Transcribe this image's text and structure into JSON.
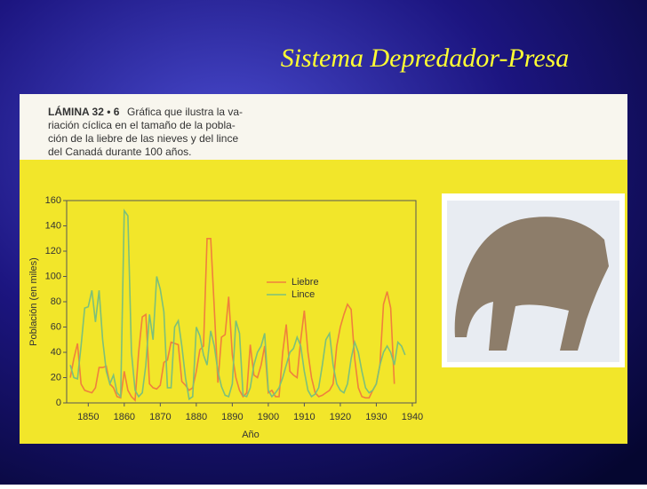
{
  "slide": {
    "title": "Sistema Depredador-Presa",
    "caption_label": "LÁMINA 32 • 6",
    "caption_lines": [
      "Gráfica que ilustra la va-",
      "riación cíclica en el tamaño de la pobla-",
      "ción de la liebre de las nieves y del lince",
      "del Canadá durante 100 años."
    ]
  },
  "chart_data": {
    "type": "line",
    "x_label": "Año",
    "y_label": "Población (en miles)",
    "x": [
      1845,
      1846,
      1847,
      1848,
      1849,
      1850,
      1851,
      1852,
      1853,
      1854,
      1855,
      1856,
      1857,
      1858,
      1859,
      1860,
      1861,
      1862,
      1863,
      1864,
      1865,
      1866,
      1867,
      1868,
      1869,
      1870,
      1871,
      1872,
      1873,
      1874,
      1875,
      1876,
      1877,
      1878,
      1879,
      1880,
      1881,
      1882,
      1883,
      1884,
      1885,
      1886,
      1887,
      1888,
      1889,
      1890,
      1891,
      1892,
      1893,
      1894,
      1895,
      1896,
      1897,
      1898,
      1899,
      1900,
      1901,
      1902,
      1903,
      1904,
      1905,
      1906,
      1907,
      1908,
      1909,
      1910,
      1911,
      1912,
      1913,
      1914,
      1915,
      1916,
      1917,
      1918,
      1919,
      1920,
      1921,
      1922,
      1923,
      1924,
      1925,
      1926,
      1927,
      1928,
      1929,
      1930,
      1931,
      1932,
      1933,
      1934,
      1935,
      1936,
      1937,
      1938
    ],
    "series": [
      {
        "name": "Liebre",
        "color": "#f0803c",
        "values": [
          20,
          35,
          47,
          15,
          10,
          9,
          8,
          12,
          28,
          28,
          29,
          15,
          12,
          5,
          4,
          25,
          10,
          5,
          2,
          40,
          68,
          70,
          15,
          12,
          11,
          14,
          32,
          34,
          48,
          47,
          46,
          17,
          14,
          10,
          12,
          25,
          42,
          45,
          130,
          130,
          75,
          16,
          52,
          54,
          84,
          38,
          20,
          10,
          5,
          8,
          46,
          22,
          20,
          30,
          45,
          8,
          10,
          5,
          5,
          40,
          62,
          25,
          22,
          20,
          50,
          73,
          40,
          20,
          8,
          5,
          6,
          8,
          10,
          15,
          45,
          60,
          70,
          78,
          74,
          35,
          12,
          5,
          4,
          4,
          10,
          15,
          30,
          78,
          88,
          75,
          15,
          null,
          null,
          null
        ]
      },
      {
        "name": "Lince",
        "color": "#7cc07a",
        "values": [
          30,
          20,
          19,
          45,
          75,
          76,
          89,
          64,
          89,
          50,
          25,
          15,
          22,
          8,
          5,
          152,
          148,
          40,
          10,
          5,
          8,
          30,
          70,
          50,
          100,
          90,
          72,
          12,
          12,
          60,
          65,
          45,
          20,
          3,
          5,
          60,
          53,
          38,
          30,
          57,
          45,
          25,
          13,
          6,
          5,
          15,
          65,
          55,
          6,
          5,
          12,
          30,
          40,
          45,
          55,
          10,
          5,
          8,
          12,
          20,
          30,
          40,
          43,
          52,
          45,
          25,
          10,
          5,
          7,
          12,
          30,
          50,
          55,
          30,
          15,
          10,
          8,
          15,
          35,
          48,
          40,
          25,
          12,
          8,
          10,
          15,
          30,
          40,
          45,
          40,
          30,
          48,
          45,
          38
        ]
      }
    ],
    "xlim": [
      1844,
      1941
    ],
    "xticks": [
      1850,
      1860,
      1870,
      1880,
      1890,
      1900,
      1910,
      1920,
      1930,
      1940
    ],
    "ylim": [
      0,
      160
    ],
    "yticks": [
      0,
      20,
      40,
      60,
      80,
      100,
      120,
      140,
      160
    ]
  }
}
